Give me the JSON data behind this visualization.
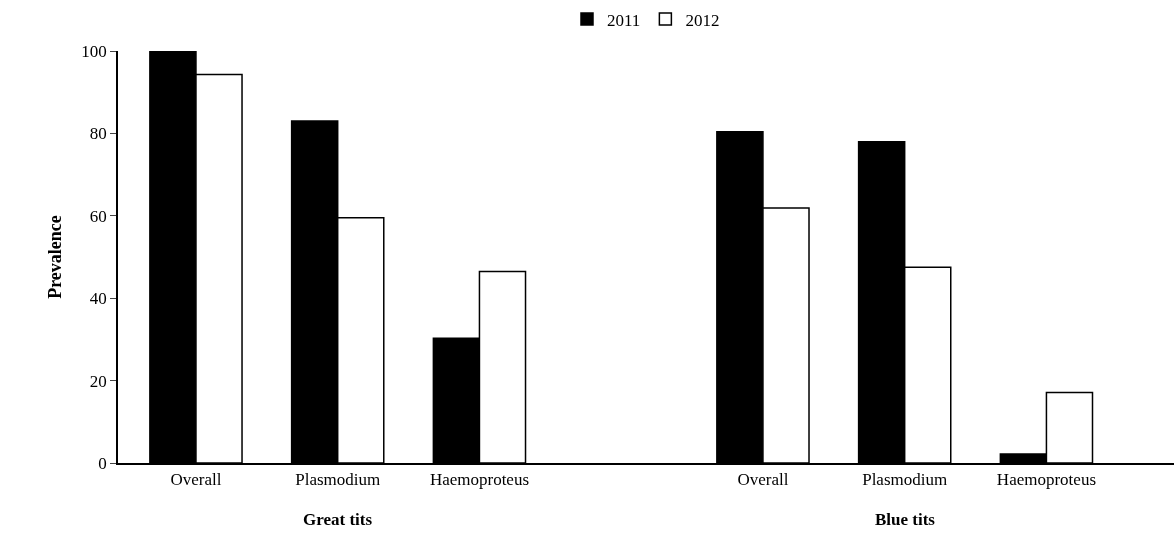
{
  "chart_data": {
    "type": "bar",
    "categories": [
      "Overall",
      "Plasmodium",
      "Haemoproteus",
      null,
      "Overall",
      "Plasmodium",
      "Haemoproteus"
    ],
    "series": [
      {
        "name": "2011",
        "color": "#000000",
        "values": [
          100,
          83.0,
          30.3,
          null,
          80.4,
          78.0,
          2.2
        ]
      },
      {
        "name": "2012",
        "color": "#ffffff",
        "values": [
          94.3,
          59.5,
          46.5,
          null,
          61.9,
          47.5,
          17.1
        ]
      }
    ],
    "ylabel": "Prevalence",
    "annotations": [
      "Great tits",
      "Blue tits"
    ],
    "ylim": [
      0,
      100
    ],
    "yticks": [
      0,
      20,
      40,
      60,
      80,
      100
    ],
    "legend": "top"
  }
}
